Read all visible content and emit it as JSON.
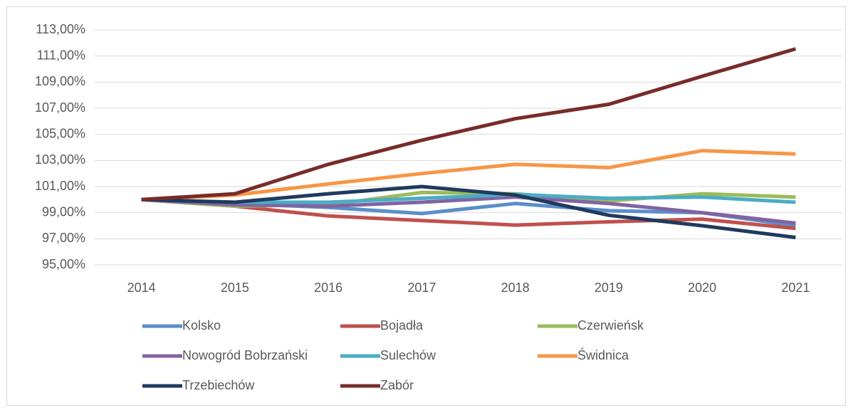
{
  "chart_data": {
    "type": "line",
    "categories": [
      "2014",
      "2015",
      "2016",
      "2017",
      "2018",
      "2019",
      "2020",
      "2021"
    ],
    "series": [
      {
        "name": "Kolsko",
        "color": "#5b8ec9",
        "values": [
          100,
          99.7,
          99.4,
          98.93,
          99.7,
          99.15,
          99.0,
          98.0
        ]
      },
      {
        "name": "Bojadła",
        "color": "#c0504d",
        "values": [
          100,
          99.5,
          98.75,
          98.4,
          98.05,
          98.3,
          98.5,
          97.8
        ]
      },
      {
        "name": "Czerwieńsk",
        "color": "#9bbb59",
        "values": [
          100,
          99.5,
          99.6,
          100.55,
          100.45,
          99.9,
          100.45,
          100.2
        ]
      },
      {
        "name": "Nowogród Bobrzański",
        "color": "#8064a2",
        "values": [
          100,
          99.6,
          99.5,
          99.8,
          100.2,
          99.7,
          99.0,
          98.2
        ]
      },
      {
        "name": "Sulechów",
        "color": "#4bacc6",
        "values": [
          100,
          99.8,
          99.8,
          100.1,
          100.4,
          100.1,
          100.2,
          99.8
        ]
      },
      {
        "name": "Świdnica",
        "color": "#f79646",
        "values": [
          100,
          100.35,
          101.2,
          102.0,
          102.7,
          102.45,
          103.75,
          103.5
        ]
      },
      {
        "name": "Trzebiechów",
        "color": "#1f3a5f",
        "values": [
          100,
          99.8,
          100.45,
          101.0,
          100.35,
          98.8,
          98.0,
          97.1
        ]
      },
      {
        "name": "Zabór",
        "color": "#772c2a",
        "values": [
          100,
          100.45,
          102.7,
          104.55,
          106.2,
          107.3,
          109.45,
          111.55
        ]
      }
    ],
    "ylim": [
      95,
      113
    ],
    "yticks": [
      {
        "value": 95,
        "label": "95,00%"
      },
      {
        "value": 97,
        "label": "97,00%"
      },
      {
        "value": 99,
        "label": "99,00%"
      },
      {
        "value": 101,
        "label": "101,00%"
      },
      {
        "value": 103,
        "label": "103,00%"
      },
      {
        "value": 105,
        "label": "105,00%"
      },
      {
        "value": 107,
        "label": "107,00%"
      },
      {
        "value": 109,
        "label": "109,00%"
      },
      {
        "value": 111,
        "label": "111,00%"
      },
      {
        "value": 113,
        "label": "113,00%"
      }
    ],
    "grid": true,
    "legend": "bottom"
  }
}
